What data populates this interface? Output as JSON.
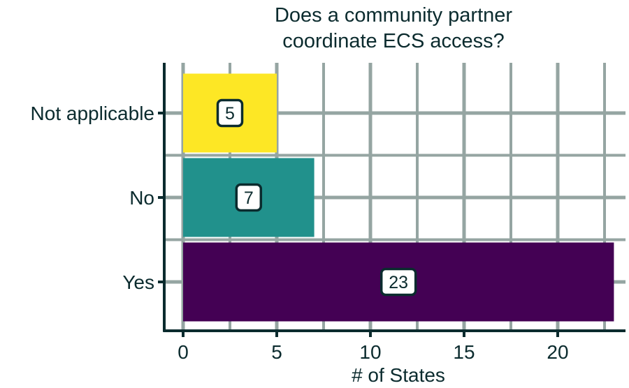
{
  "chart_data": {
    "type": "bar",
    "orientation": "horizontal",
    "title_lines": [
      "Does a community partner",
      "coordinate ECS access?"
    ],
    "xlabel": "# of States",
    "ylabel": "",
    "categories": [
      "Not applicable",
      "No",
      "Yes"
    ],
    "values": [
      5,
      7,
      23
    ],
    "value_labels": [
      "5",
      "7",
      "23"
    ],
    "colors": [
      "#fde725",
      "#21918c",
      "#440154"
    ],
    "xlim": [
      0,
      23.5
    ],
    "xticks": [
      0,
      5,
      10,
      15,
      20
    ],
    "xtick_labels": [
      "0",
      "5",
      "10",
      "15",
      "20"
    ],
    "grid": true,
    "legend": "none"
  }
}
